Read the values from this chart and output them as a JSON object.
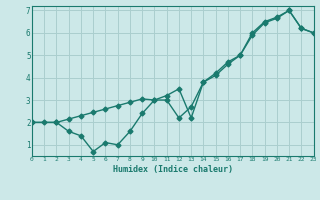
{
  "line1_x": [
    0,
    2,
    3,
    4,
    5,
    6,
    7,
    8,
    9,
    10,
    11,
    12,
    13,
    14,
    15,
    16,
    17,
    18,
    19,
    20,
    21,
    22,
    23
  ],
  "line1_y": [
    2.0,
    2.0,
    1.6,
    1.4,
    0.7,
    1.1,
    1.0,
    1.6,
    2.4,
    3.0,
    3.0,
    2.2,
    2.7,
    3.8,
    4.2,
    4.7,
    5.0,
    6.0,
    6.5,
    6.7,
    7.0,
    6.2,
    6.0
  ],
  "line2_x": [
    0,
    1,
    2,
    3,
    4,
    5,
    6,
    7,
    8,
    9,
    10,
    11,
    12,
    13,
    14,
    15,
    16,
    17,
    18,
    19,
    20,
    21,
    22,
    23
  ],
  "line2_y": [
    2.0,
    2.0,
    2.0,
    2.15,
    2.3,
    2.45,
    2.6,
    2.75,
    2.9,
    3.05,
    3.0,
    3.2,
    3.5,
    2.2,
    3.8,
    4.1,
    4.6,
    5.0,
    5.9,
    6.45,
    6.65,
    7.0,
    6.2,
    6.0
  ],
  "line_color": "#1a7a6e",
  "bg_color": "#cce8e8",
  "grid_color": "#aacece",
  "xlabel": "Humidex (Indice chaleur)",
  "xlim": [
    0,
    23
  ],
  "ylim": [
    0.5,
    7.2
  ],
  "xticks": [
    0,
    1,
    2,
    3,
    4,
    5,
    6,
    7,
    8,
    9,
    10,
    11,
    12,
    13,
    14,
    15,
    16,
    17,
    18,
    19,
    20,
    21,
    22,
    23
  ],
  "yticks": [
    1,
    2,
    3,
    4,
    5,
    6,
    7
  ],
  "marker": "D",
  "marker_size": 2.5,
  "line_width": 1.0
}
